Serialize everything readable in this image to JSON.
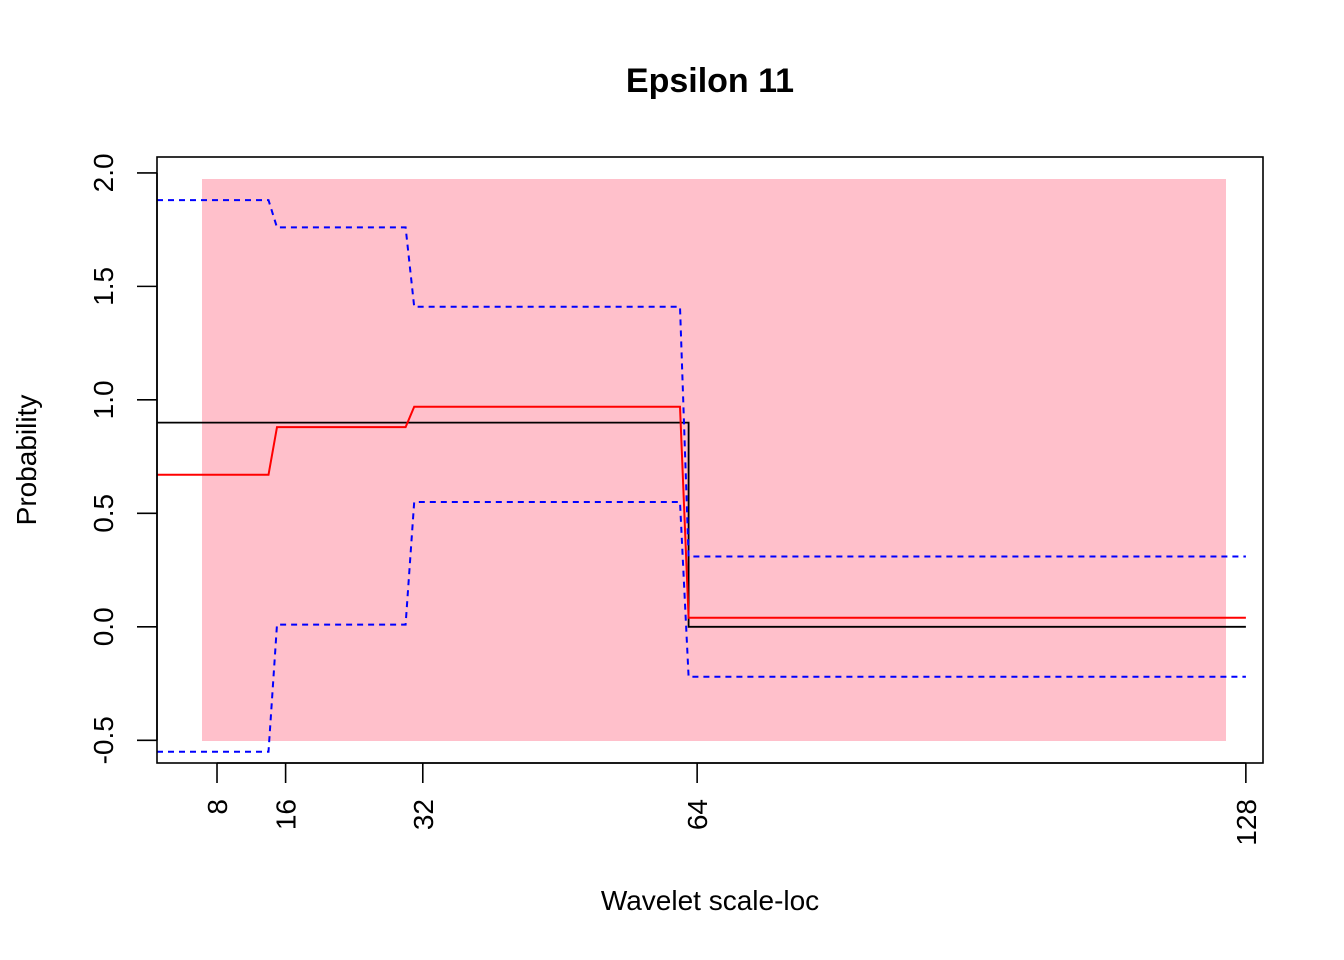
{
  "chart_data": {
    "type": "line",
    "title": "Epsilon 11",
    "xlabel": "Wavelet scale-loc",
    "ylabel": "Probability",
    "xlim": [
      1,
      130
    ],
    "ylim": [
      -0.6,
      2.07
    ],
    "x_ticks": [
      8,
      16,
      32,
      64,
      128
    ],
    "y_ticks": [
      -0.5,
      0.0,
      0.5,
      1.0,
      1.5,
      2.0
    ],
    "y_tick_labels": [
      "-0.5",
      "0.0",
      "0.5",
      "1.0",
      "1.5",
      "2.0"
    ],
    "background_color": "#FFC0CB",
    "grid": false,
    "legend": null,
    "series": [
      {
        "style": "solid",
        "color": "#000000",
        "x": [
          1,
          63,
          63,
          128
        ],
        "y": [
          0.9,
          0.9,
          0.0,
          0.0
        ]
      },
      {
        "style": "solid",
        "color": "#FF0000",
        "x": [
          1,
          14,
          15,
          30,
          31,
          62,
          63,
          128
        ],
        "y": [
          0.67,
          0.67,
          0.88,
          0.88,
          0.97,
          0.97,
          0.04,
          0.04
        ]
      },
      {
        "style": "dashed",
        "color": "#0000FF",
        "x": [
          1,
          14,
          15,
          30,
          31,
          62,
          63,
          128
        ],
        "y": [
          1.88,
          1.88,
          1.76,
          1.76,
          1.41,
          1.41,
          0.31,
          0.31
        ]
      },
      {
        "style": "dashed",
        "color": "#0000FF",
        "x": [
          1,
          14,
          15,
          30,
          31,
          62,
          63,
          128
        ],
        "y": [
          -0.55,
          -0.55,
          0.01,
          0.01,
          0.55,
          0.55,
          -0.22,
          -0.22
        ]
      }
    ]
  }
}
